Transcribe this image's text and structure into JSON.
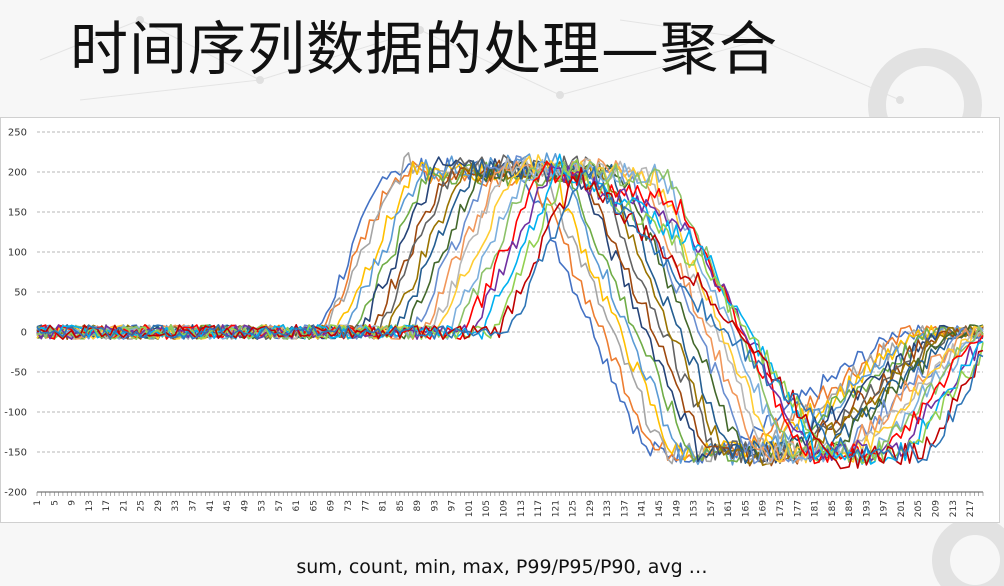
{
  "slide": {
    "title": "时间序列数据的处理—聚合",
    "caption": "sum, count, min, max, P99/P95/P90, avg …"
  },
  "chart_data": {
    "type": "line",
    "title": "",
    "xlabel": "",
    "ylabel": "",
    "ylim": [
      -200,
      250
    ],
    "yticks": [
      250,
      200,
      150,
      100,
      50,
      0,
      -50,
      -100,
      -150,
      -200
    ],
    "xlim": [
      1,
      220
    ],
    "xticks": [
      1,
      5,
      9,
      13,
      17,
      21,
      25,
      29,
      33,
      37,
      41,
      45,
      49,
      53,
      57,
      61,
      65,
      69,
      73,
      77,
      81,
      85,
      89,
      93,
      97,
      101,
      105,
      109,
      113,
      117,
      121,
      125,
      129,
      133,
      137,
      141,
      145,
      149,
      153,
      157,
      161,
      165,
      169,
      173,
      177,
      181,
      185,
      189,
      193,
      197,
      201,
      205,
      209,
      213,
      217
    ],
    "grid": "horizontal-dashed",
    "legend": "none",
    "noise_amplitude": 9,
    "series_colors": [
      "#4472c4",
      "#ed7d31",
      "#a5a5a5",
      "#ffc000",
      "#5b9bd5",
      "#70ad47",
      "#264478",
      "#9e480e",
      "#636363",
      "#997300",
      "#255e91",
      "#43682b",
      "#698ed0",
      "#f1975a",
      "#b7b7b7",
      "#ffcd33",
      "#7cafdd",
      "#8cc168",
      "#ff0000",
      "#7030a0",
      "#00b0f0",
      "#92d050",
      "#c00000",
      "#2e75b6",
      "#bf9000",
      "#548235"
    ],
    "series": [
      {
        "key_x": [
          1,
          66,
          82,
          114,
          142,
          162,
          200,
          220
        ],
        "key_y": [
          0,
          0,
          205,
          200,
          -150,
          -150,
          0,
          0
        ]
      },
      {
        "key_x": [
          1,
          67,
          84,
          116,
          144,
          164,
          202,
          220
        ],
        "key_y": [
          0,
          0,
          200,
          195,
          -148,
          -150,
          0,
          0
        ]
      },
      {
        "key_x": [
          1,
          68,
          86,
          118,
          146,
          166,
          204,
          220
        ],
        "key_y": [
          0,
          0,
          210,
          205,
          -152,
          -150,
          0,
          0
        ]
      },
      {
        "key_x": [
          1,
          70,
          88,
          120,
          148,
          168,
          206,
          220
        ],
        "key_y": [
          0,
          0,
          198,
          200,
          -150,
          -148,
          0,
          0
        ]
      },
      {
        "key_x": [
          1,
          72,
          90,
          122,
          150,
          170,
          208,
          220
        ],
        "key_y": [
          0,
          0,
          205,
          210,
          -155,
          -150,
          0,
          0
        ]
      },
      {
        "key_x": [
          1,
          74,
          92,
          124,
          152,
          172,
          208,
          220
        ],
        "key_y": [
          0,
          0,
          200,
          195,
          -150,
          -152,
          0,
          0
        ]
      },
      {
        "key_x": [
          1,
          76,
          94,
          126,
          154,
          174,
          210,
          220
        ],
        "key_y": [
          0,
          0,
          208,
          202,
          -148,
          -150,
          0,
          0
        ]
      },
      {
        "key_x": [
          1,
          78,
          96,
          128,
          156,
          176,
          210,
          220
        ],
        "key_y": [
          0,
          0,
          202,
          198,
          -152,
          -155,
          0,
          0
        ]
      },
      {
        "key_x": [
          1,
          80,
          98,
          130,
          158,
          178,
          212,
          220
        ],
        "key_y": [
          0,
          0,
          210,
          205,
          -150,
          -150,
          0,
          0
        ]
      },
      {
        "key_x": [
          1,
          82,
          100,
          132,
          160,
          180,
          212,
          220
        ],
        "key_y": [
          0,
          0,
          200,
          200,
          -155,
          -150,
          0,
          0
        ]
      },
      {
        "key_x": [
          1,
          84,
          102,
          134,
          162,
          182,
          214,
          220
        ],
        "key_y": [
          0,
          0,
          205,
          195,
          -150,
          -152,
          0,
          0
        ]
      },
      {
        "key_x": [
          1,
          86,
          104,
          136,
          164,
          184,
          214,
          220
        ],
        "key_y": [
          0,
          0,
          202,
          202,
          -148,
          -150,
          0,
          0
        ]
      },
      {
        "key_x": [
          1,
          88,
          106,
          138,
          166,
          186,
          216,
          220
        ],
        "key_y": [
          0,
          0,
          208,
          198,
          -150,
          -155,
          0,
          0
        ]
      },
      {
        "key_x": [
          1,
          90,
          108,
          140,
          168,
          188,
          216,
          220
        ],
        "key_y": [
          0,
          0,
          200,
          205,
          -152,
          -150,
          0,
          0
        ]
      },
      {
        "key_x": [
          1,
          92,
          110,
          142,
          170,
          190,
          218,
          220
        ],
        "key_y": [
          0,
          0,
          205,
          200,
          -150,
          -148,
          0,
          0
        ]
      },
      {
        "key_x": [
          1,
          94,
          112,
          144,
          172,
          192,
          218,
          220
        ],
        "key_y": [
          0,
          0,
          210,
          195,
          -155,
          -150,
          0,
          0
        ]
      },
      {
        "key_x": [
          1,
          96,
          114,
          146,
          174,
          194,
          219,
          220
        ],
        "key_y": [
          0,
          0,
          200,
          200,
          -150,
          -152,
          0,
          0
        ]
      },
      {
        "key_x": [
          1,
          98,
          116,
          148,
          176,
          196,
          219,
          220
        ],
        "key_y": [
          0,
          0,
          205,
          190,
          -152,
          -150,
          0,
          0
        ]
      },
      {
        "key_x": [
          1,
          100,
          118,
          150,
          178,
          198,
          220
        ],
        "key_y": [
          0,
          0,
          200,
          160,
          -150,
          -150,
          0
        ]
      },
      {
        "key_x": [
          1,
          102,
          120,
          152,
          180,
          200,
          220
        ],
        "key_y": [
          0,
          0,
          205,
          130,
          -150,
          -150,
          -10
        ]
      },
      {
        "key_x": [
          1,
          104,
          122,
          154,
          182,
          202,
          220
        ],
        "key_y": [
          0,
          0,
          208,
          110,
          -155,
          -150,
          -15
        ]
      },
      {
        "key_x": [
          1,
          106,
          124,
          156,
          184,
          204,
          220
        ],
        "key_y": [
          0,
          0,
          210,
          80,
          -150,
          -150,
          -20
        ]
      },
      {
        "key_x": [
          1,
          108,
          126,
          158,
          186,
          206,
          220
        ],
        "key_y": [
          0,
          0,
          200,
          40,
          -158,
          -152,
          -25
        ]
      },
      {
        "key_x": [
          1,
          110,
          128,
          160,
          188,
          208,
          220
        ],
        "key_y": [
          0,
          0,
          205,
          0,
          -150,
          -150,
          -30
        ]
      }
    ]
  }
}
